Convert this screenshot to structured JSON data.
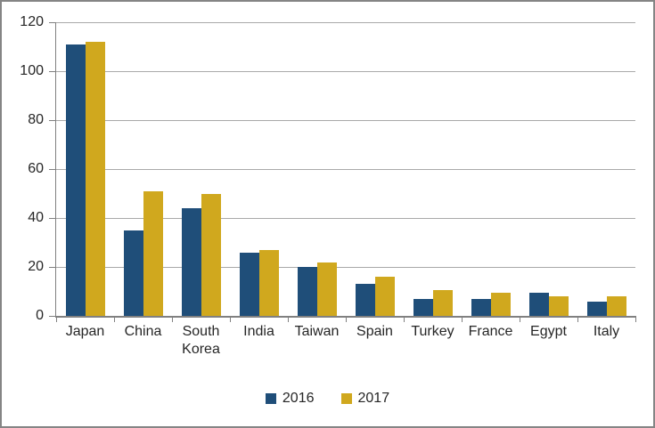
{
  "chart_data": {
    "type": "bar",
    "categories": [
      "Japan",
      "China",
      "South Korea",
      "India",
      "Taiwan",
      "Spain",
      "Turkey",
      "France",
      "Egypt",
      "Italy"
    ],
    "series": [
      {
        "name": "2016",
        "color": "#1F4E79",
        "values": [
          111,
          35,
          44,
          26,
          20,
          13,
          7,
          7,
          9.5,
          6
        ]
      },
      {
        "name": "2017",
        "color": "#D0A81E",
        "values": [
          112,
          51,
          50,
          27,
          22,
          16,
          10.5,
          9.5,
          8,
          8
        ]
      }
    ],
    "ylim": [
      0,
      120
    ],
    "yticks": [
      0,
      20,
      40,
      60,
      80,
      100,
      120
    ],
    "grid": true,
    "legend_position": "bottom",
    "legend": [
      "2016",
      "2017"
    ]
  }
}
